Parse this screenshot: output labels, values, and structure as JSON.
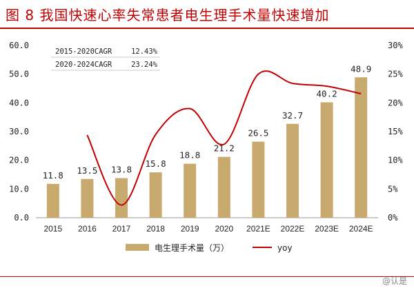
{
  "title": "图 8 我国快速心率失常患者电生理手术量快速增加",
  "watermark": "@认是",
  "colors": {
    "bar": "#c8a96e",
    "line": "#c00000",
    "title": "#c00000"
  },
  "cagr_table": [
    {
      "label": "2015-2020CAGR",
      "value": "12.43%"
    },
    {
      "label": "2020-2024CAGR",
      "value": "23.24%"
    }
  ],
  "chart_data": {
    "type": "bar",
    "categories": [
      "2015",
      "2016",
      "2017",
      "2018",
      "2019",
      "2020",
      "2021E",
      "2022E",
      "2023E",
      "2024E"
    ],
    "series": [
      {
        "name": "电生理手术量（万）",
        "type": "bar",
        "axis": "left",
        "values": [
          11.8,
          13.5,
          13.8,
          15.8,
          18.8,
          21.2,
          26.5,
          32.7,
          40.2,
          48.9
        ]
      },
      {
        "name": "yoy",
        "type": "line",
        "axis": "right",
        "values": [
          null,
          14.4,
          2.2,
          14.5,
          19.0,
          12.8,
          25.0,
          23.4,
          22.9,
          21.6
        ]
      }
    ],
    "y_left": {
      "min": 0,
      "max": 60,
      "step": 10,
      "tick_labels": [
        "0.0",
        "10.0",
        "20.0",
        "30.0",
        "40.0",
        "50.0",
        "60.0"
      ]
    },
    "y_right": {
      "min": 0,
      "max": 30,
      "step": 5,
      "tick_labels": [
        "0%",
        "5%",
        "10%",
        "15%",
        "20%",
        "25%",
        "30%"
      ]
    },
    "data_labels": [
      "11.8",
      "13.5",
      "13.8",
      "15.8",
      "18.8",
      "21.2",
      "26.5",
      "32.7",
      "40.2",
      "48.9"
    ],
    "grid": false,
    "legend": "bottom"
  }
}
